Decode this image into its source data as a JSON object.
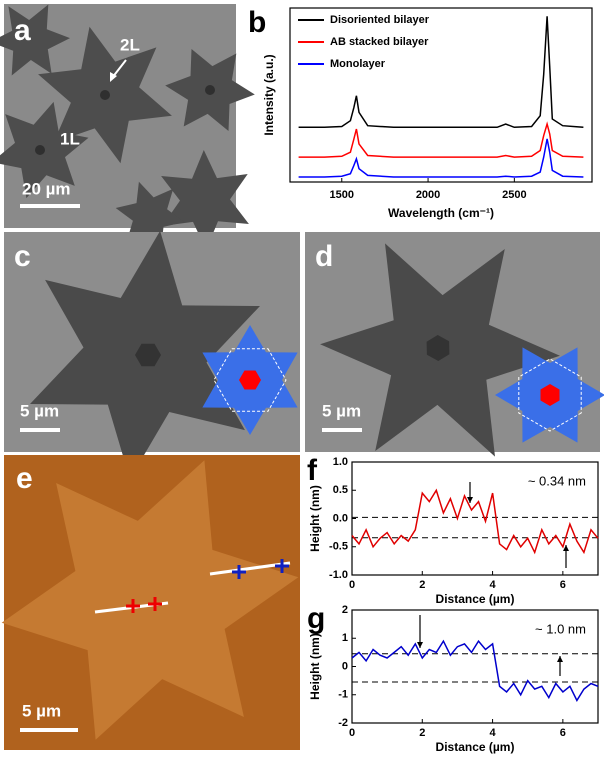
{
  "panels": {
    "a": {
      "label": "a",
      "annotations": [
        "2L",
        "1L"
      ],
      "scale_bar": "20 µm"
    },
    "b": {
      "label": "b"
    },
    "c": {
      "label": "c",
      "scale_bar": "5 µm"
    },
    "d": {
      "label": "d",
      "scale_bar": "5 µm"
    },
    "e": {
      "label": "e",
      "scale_bar": "5 µm"
    },
    "f": {
      "label": "f"
    },
    "g": {
      "label": "g"
    }
  },
  "chart_data": [
    {
      "type": "line",
      "xlabel": "Wavelength (cm⁻¹)",
      "ylabel": "Intensity (a.u.)",
      "x": [
        1250,
        1400,
        1500,
        1550,
        1570,
        1585,
        1600,
        1650,
        1800,
        2000,
        2200,
        2400,
        2450,
        2500,
        2600,
        2650,
        2670,
        2690,
        2705,
        2720,
        2780,
        2900
      ],
      "series": [
        {
          "name": "Disoriented bilayer",
          "color": "#000000",
          "values": [
            3.3,
            3.3,
            3.35,
            3.7,
            4.5,
            5.2,
            4.2,
            3.4,
            3.3,
            3.3,
            3.3,
            3.3,
            3.5,
            3.3,
            3.35,
            4.0,
            6.5,
            10.0,
            7.0,
            3.8,
            3.4,
            3.3
          ]
        },
        {
          "name": "AB stacked bilayer",
          "color": "#ff0000",
          "values": [
            1.5,
            1.5,
            1.55,
            1.8,
            2.6,
            3.2,
            2.3,
            1.6,
            1.5,
            1.5,
            1.5,
            1.5,
            1.6,
            1.5,
            1.55,
            1.9,
            2.8,
            3.5,
            2.9,
            1.9,
            1.55,
            1.5
          ]
        },
        {
          "name": "Monolayer",
          "color": "#0000ff",
          "values": [
            0.3,
            0.3,
            0.35,
            0.5,
            1.0,
            1.4,
            0.8,
            0.4,
            0.3,
            0.3,
            0.3,
            0.3,
            0.35,
            0.3,
            0.35,
            0.6,
            1.5,
            2.6,
            1.8,
            0.7,
            0.35,
            0.3
          ]
        }
      ],
      "xlim": [
        1200,
        2950
      ],
      "xticks": [
        1500,
        2000,
        2500
      ],
      "ylim": [
        0,
        10.5
      ],
      "legend": "upper left"
    },
    {
      "type": "line",
      "xlabel": "Distance (µm)",
      "ylabel": "Height (nm)",
      "annotation": "~ 0.34 nm",
      "x": [
        0,
        0.2,
        0.4,
        0.6,
        0.8,
        1.0,
        1.2,
        1.4,
        1.6,
        1.8,
        2.0,
        2.2,
        2.4,
        2.6,
        2.8,
        3.0,
        3.2,
        3.4,
        3.6,
        3.8,
        4.0,
        4.2,
        4.4,
        4.6,
        4.8,
        5.0,
        5.2,
        5.4,
        5.6,
        5.8,
        6.0,
        6.2,
        6.4,
        6.6,
        6.8,
        7.0
      ],
      "series": [
        {
          "color": "#e00000",
          "values": [
            -0.3,
            -0.45,
            -0.2,
            -0.5,
            -0.35,
            -0.25,
            -0.45,
            -0.3,
            -0.4,
            -0.2,
            0.45,
            0.3,
            0.5,
            0.1,
            0.35,
            0.0,
            0.4,
            0.15,
            0.3,
            -0.05,
            0.45,
            -0.45,
            -0.55,
            -0.3,
            -0.5,
            -0.35,
            -0.6,
            -0.2,
            -0.45,
            -0.3,
            -0.5,
            -0.1,
            -0.4,
            -0.6,
            -0.2,
            -0.35
          ]
        }
      ],
      "reference_lines": [
        0.02,
        -0.34
      ],
      "xlim": [
        0,
        7
      ],
      "xticks": [
        0,
        2,
        4,
        6
      ],
      "ylim": [
        -1,
        1
      ],
      "yticks": [
        {
          "value": 1.0,
          "label": "1.0"
        },
        0.5,
        {
          "value": 0,
          "label": "0.0"
        },
        -0.5,
        {
          "value": -1.0,
          "label": "-1.0"
        }
      ]
    },
    {
      "type": "line",
      "xlabel": "Distance (µm)",
      "ylabel": "Height (nm)",
      "annotation": "~ 1.0 nm",
      "x": [
        0,
        0.2,
        0.4,
        0.6,
        0.8,
        1.0,
        1.2,
        1.4,
        1.6,
        1.8,
        2.0,
        2.2,
        2.4,
        2.6,
        2.8,
        3.0,
        3.2,
        3.4,
        3.6,
        3.8,
        4.0,
        4.2,
        4.4,
        4.6,
        4.8,
        5.0,
        5.2,
        5.4,
        5.6,
        5.8,
        6.0,
        6.2,
        6.4,
        6.6,
        6.8,
        7.0
      ],
      "series": [
        {
          "color": "#0000cc",
          "values": [
            0.3,
            0.5,
            0.2,
            0.6,
            0.4,
            0.3,
            0.5,
            0.7,
            0.4,
            0.8,
            0.3,
            0.6,
            0.5,
            0.9,
            0.4,
            0.7,
            0.8,
            0.5,
            0.9,
            0.6,
            0.8,
            -0.7,
            -0.9,
            -0.6,
            -1.0,
            -0.5,
            -0.8,
            -0.7,
            -1.1,
            -0.6,
            -0.9,
            -0.7,
            -1.2,
            -0.8,
            -0.6,
            -0.7
          ]
        }
      ],
      "reference_lines": [
        0.45,
        -0.55
      ],
      "xlim": [
        0,
        7
      ],
      "xticks": [
        0,
        2,
        4,
        6
      ],
      "ylim": [
        -2,
        2
      ],
      "yticks": [
        2,
        1,
        0,
        -1,
        -2
      ]
    }
  ]
}
